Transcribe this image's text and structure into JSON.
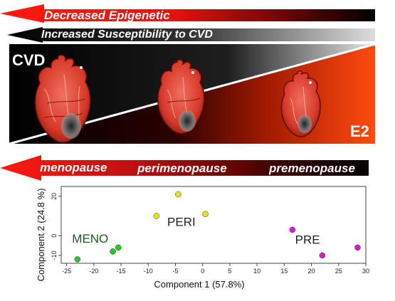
{
  "arrows": {
    "top": "Decreased Epigenetic",
    "second": "Increased Susceptibility to CVD",
    "stage": [
      "menopause",
      "perimenopause",
      "premenopause"
    ]
  },
  "panel": {
    "left_label": "CVD",
    "right_label": "E2"
  },
  "colors": {
    "red": "#ff1a10",
    "black": "#000000",
    "orange": "#ff5a1a",
    "meno": "#22cc22",
    "peri": "#e6e61a",
    "pre": "#d61ad6"
  },
  "icons": [
    "heart-large",
    "heart-medium",
    "heart-small"
  ],
  "chart_data": {
    "type": "scatter",
    "xlabel": "Component 1 (57.8%)",
    "ylabel": "Component 2 (24.8 %)",
    "xlim": [
      -26,
      30
    ],
    "ylim": [
      -14,
      25
    ],
    "xticks": [
      "-25",
      "-20",
      "-15",
      "-10",
      "-5",
      "0",
      "5",
      "10",
      "15",
      "20",
      "25",
      "30"
    ],
    "yticks": [
      "20",
      "0",
      "-10"
    ],
    "series": [
      {
        "name": "MENO",
        "color": "#22cc22",
        "points": [
          [
            -23,
            -12
          ],
          [
            -16.5,
            -8
          ],
          [
            -15.5,
            -6
          ]
        ]
      },
      {
        "name": "PERI",
        "color": "#e6e61a",
        "points": [
          [
            -4.5,
            21
          ],
          [
            -8.5,
            10
          ],
          [
            0.5,
            11
          ]
        ]
      },
      {
        "name": "PRE",
        "color": "#d61ad6",
        "points": [
          [
            16.5,
            3
          ],
          [
            22,
            -10
          ],
          [
            28.5,
            -6
          ]
        ]
      }
    ]
  }
}
